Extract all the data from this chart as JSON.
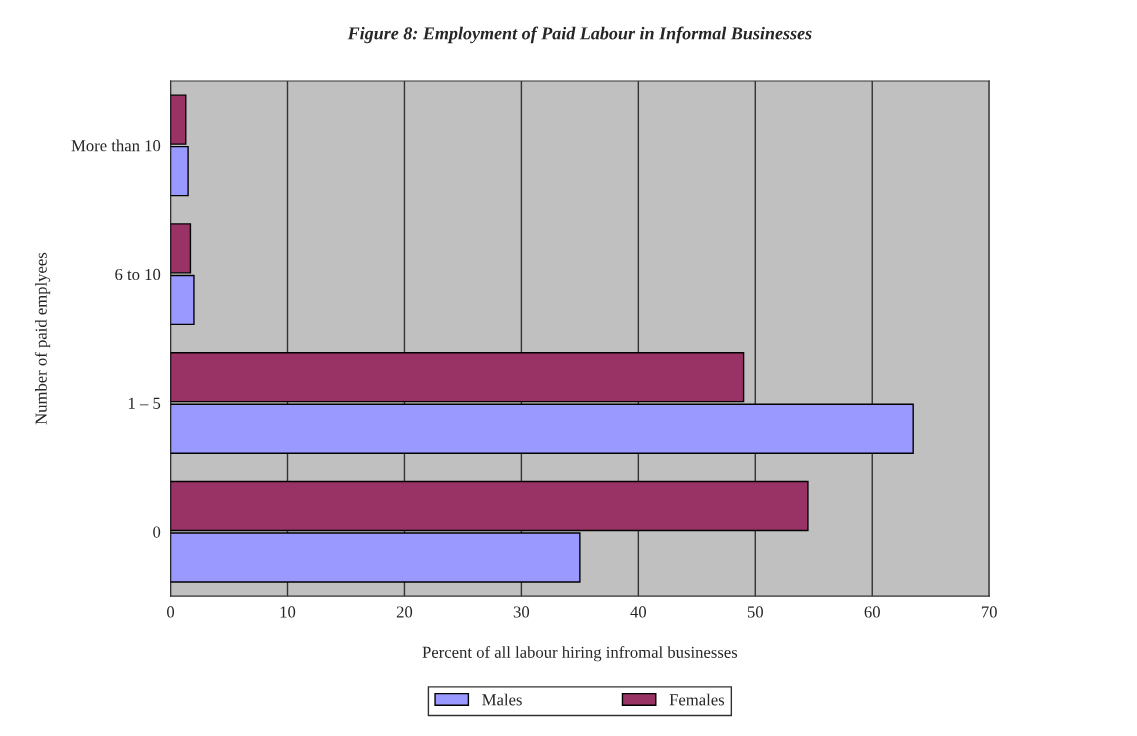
{
  "chart_data": {
    "type": "bar",
    "orientation": "horizontal",
    "title": "Figure 8: Employment of Paid Labour in Informal Businesses",
    "xlabel": "Percent of all labour hiring infromal businesses",
    "ylabel": "Number of paid emplyees",
    "categories": [
      "More than 10",
      "6 to 10",
      "1 – 5",
      "0"
    ],
    "series": [
      {
        "name": "Males",
        "color": "#9999ff",
        "values": [
          1.5,
          2,
          63.5,
          35
        ]
      },
      {
        "name": "Females",
        "color": "#993366",
        "values": [
          1.3,
          1.7,
          49,
          54.5
        ]
      }
    ],
    "xlim": [
      0,
      70
    ],
    "xticks": [
      0,
      10,
      20,
      30,
      40,
      50,
      60,
      70
    ],
    "grid": "x",
    "legend": "bottom"
  }
}
